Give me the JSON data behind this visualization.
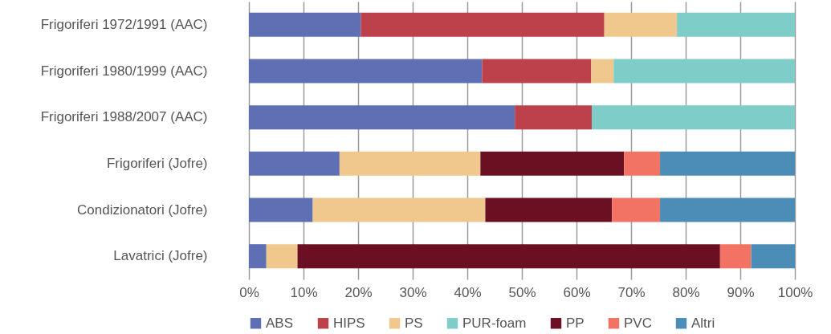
{
  "chart_data": {
    "type": "bar",
    "orientation": "horizontal",
    "stacked": true,
    "categories": [
      "Frigoriferi 1972/1991 (AAC)",
      "Frigoriferi 1980/1999 (AAC)",
      "Frigoriferi 1988/2007 (AAC)",
      "Frigoriferi (Jofre)",
      "Condizionatori (Jofre)",
      "Lavatrici (Jofre)"
    ],
    "series": [
      {
        "name": "ABS",
        "color": "#5e6fb4",
        "values": [
          20.5,
          42.7,
          48.7,
          16.6,
          11.7,
          3.2
        ]
      },
      {
        "name": "HIPS",
        "color": "#bd414b",
        "values": [
          44.6,
          20.0,
          14.1,
          null,
          null,
          null
        ]
      },
      {
        "name": "PS",
        "color": "#f0c88e",
        "values": [
          13.3,
          4.1,
          null,
          25.8,
          31.6,
          5.7
        ]
      },
      {
        "name": "PUR-foam",
        "color": "#7fcdc9",
        "values": [
          21.6,
          33.2,
          37.2,
          null,
          null,
          null
        ]
      },
      {
        "name": "PP",
        "color": "#6a1022",
        "values": [
          null,
          null,
          null,
          26.3,
          23.2,
          77.4
        ]
      },
      {
        "name": "PVC",
        "color": "#f27363",
        "values": [
          null,
          null,
          null,
          6.6,
          8.8,
          5.7
        ]
      },
      {
        "name": "Altri",
        "color": "#4b8db6",
        "values": [
          null,
          null,
          null,
          24.7,
          24.7,
          8.0
        ]
      }
    ],
    "xlim": [
      0,
      100
    ],
    "xticks": [
      {
        "value": 0,
        "label": "0%"
      },
      {
        "value": 10,
        "label": "10%"
      },
      {
        "value": 20,
        "label": "20%"
      },
      {
        "value": 30,
        "label": "30%"
      },
      {
        "value": 40,
        "label": "40%"
      },
      {
        "value": 50,
        "label": "50%"
      },
      {
        "value": 60,
        "label": "60%"
      },
      {
        "value": 70,
        "label": "70%"
      },
      {
        "value": 80,
        "label": "80%"
      },
      {
        "value": 90,
        "label": "90%"
      },
      {
        "value": 100,
        "label": "100%"
      }
    ],
    "grid": "x",
    "legend": "bottom"
  }
}
